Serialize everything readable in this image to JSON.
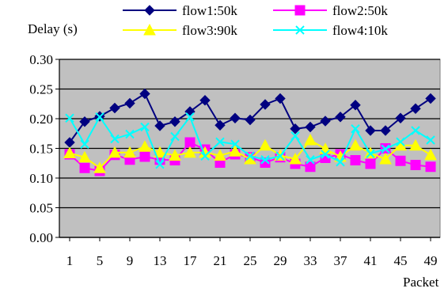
{
  "chart_data": {
    "type": "line",
    "ylabel": "Delay (s)",
    "xlabel": "Packet",
    "ylim": [
      0,
      0.3
    ],
    "yticks": [
      "0.00",
      "0.05",
      "0.10",
      "0.15",
      "0.20",
      "0.25",
      "0.30"
    ],
    "xticks": [
      "1",
      "5",
      "9",
      "13",
      "17",
      "21",
      "25",
      "29",
      "33",
      "37",
      "41",
      "45",
      "49"
    ],
    "x": [
      1,
      3,
      5,
      7,
      9,
      11,
      13,
      15,
      17,
      19,
      21,
      23,
      25,
      27,
      29,
      31,
      33,
      35,
      37,
      39,
      41,
      43,
      45,
      47,
      49
    ],
    "grid": "horizontal",
    "legend_position": "top",
    "plot_background": "#c0c0c0",
    "series": [
      {
        "name": "flow1:50k",
        "color": "#000080",
        "marker": "diamond",
        "values": [
          0.16,
          0.195,
          0.204,
          0.218,
          0.226,
          0.242,
          0.188,
          0.195,
          0.212,
          0.231,
          0.189,
          0.201,
          0.198,
          0.224,
          0.234,
          0.183,
          0.186,
          0.196,
          0.203,
          0.223,
          0.18,
          0.18,
          0.201,
          0.217,
          0.234
        ]
      },
      {
        "name": "flow2:50k",
        "color": "#ff00ff",
        "marker": "square",
        "values": [
          0.14,
          0.117,
          0.112,
          0.139,
          0.131,
          0.136,
          0.131,
          0.13,
          0.16,
          0.148,
          0.126,
          0.14,
          0.135,
          0.126,
          0.135,
          0.124,
          0.119,
          0.134,
          0.14,
          0.13,
          0.124,
          0.15,
          0.129,
          0.122,
          0.119
        ]
      },
      {
        "name": "flow3:90k",
        "color": "#ffff00",
        "marker": "triangle",
        "values": [
          0.142,
          0.135,
          0.117,
          0.143,
          0.143,
          0.153,
          0.143,
          0.138,
          0.143,
          0.143,
          0.138,
          0.145,
          0.132,
          0.155,
          0.138,
          0.132,
          0.164,
          0.149,
          0.136,
          0.155,
          0.142,
          0.132,
          0.155,
          0.155,
          0.139
        ]
      },
      {
        "name": "flow4:10k",
        "color": "#00ffff",
        "marker": "x",
        "values": [
          0.201,
          0.157,
          0.203,
          0.166,
          0.174,
          0.186,
          0.123,
          0.17,
          0.203,
          0.137,
          0.161,
          0.157,
          0.137,
          0.131,
          0.137,
          0.171,
          0.131,
          0.14,
          0.127,
          0.183,
          0.141,
          0.149,
          0.161,
          0.18,
          0.164
        ]
      }
    ]
  }
}
